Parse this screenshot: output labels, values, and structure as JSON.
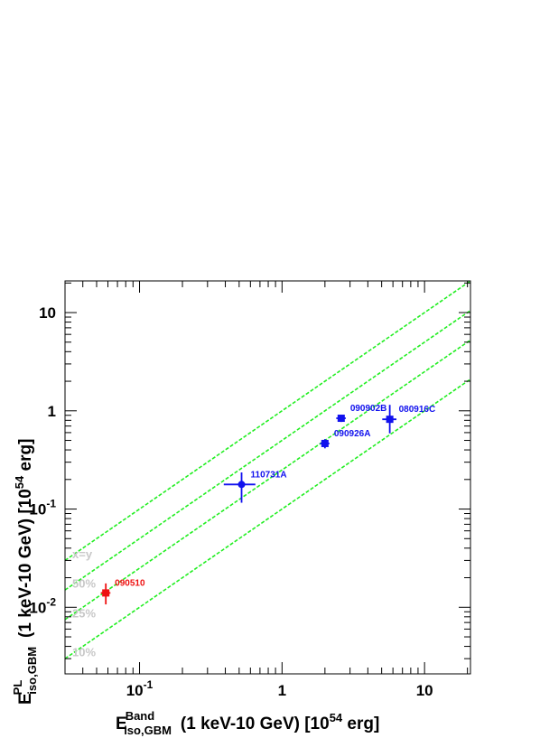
{
  "chart_data": {
    "type": "scatter",
    "title": "",
    "xlabel": {
      "symbol": "E",
      "sup": "Band",
      "sub": "iso,GBM",
      "text": "(1 keV-10 GeV) [10",
      "exp": "54",
      "unit": " erg]"
    },
    "ylabel": {
      "symbol": "E",
      "sup": "PL",
      "sub": "iso,GBM",
      "text": "(1 keV-10 GeV) [10",
      "exp": "54",
      "unit": " erg]"
    },
    "xscale": "log",
    "yscale": "log",
    "xlim": [
      0.03,
      21
    ],
    "ylim": [
      0.0021,
      21
    ],
    "xticks": [
      {
        "v": 0.1,
        "base": "10",
        "exp": "-1"
      },
      {
        "v": 1,
        "text": "1"
      },
      {
        "v": 10,
        "text": "10"
      }
    ],
    "yticks": [
      {
        "v": 0.01,
        "base": "10",
        "exp": "-2"
      },
      {
        "v": 0.1,
        "base": "10",
        "exp": "-1"
      },
      {
        "v": 1,
        "text": "1"
      },
      {
        "v": 10,
        "text": "10"
      }
    ],
    "reference_lines": [
      {
        "label": "x=y",
        "ratio": 1.0
      },
      {
        "label": "50%",
        "ratio": 0.5
      },
      {
        "label": "25%",
        "ratio": 0.25
      },
      {
        "label": "10%",
        "ratio": 0.1
      }
    ],
    "reference_color": "#22ee22",
    "reference_label_color": "#c8c8c8",
    "points": [
      {
        "name": "090510",
        "x": 0.058,
        "y": 0.014,
        "xerr": [
          0.0045,
          0.0045
        ],
        "yerr": [
          0.0033,
          0.0035
        ],
        "color": "#ee1111",
        "marker": "square"
      },
      {
        "name": "110731A",
        "x": 0.52,
        "y": 0.178,
        "xerr": [
          0.13,
          0.13
        ],
        "yerr": [
          0.062,
          0.058
        ],
        "color": "#1111ee",
        "marker": "circle"
      },
      {
        "name": "090926A",
        "x": 2.0,
        "y": 0.465,
        "xerr": [
          0.15,
          0.15
        ],
        "yerr": [
          0.05,
          0.05
        ],
        "color": "#1111ee",
        "marker": "square"
      },
      {
        "name": "090902B",
        "x": 2.6,
        "y": 0.84,
        "xerr": [
          0.2,
          0.2
        ],
        "yerr": [
          0.07,
          0.07
        ],
        "color": "#1111ee",
        "marker": "square"
      },
      {
        "name": "080916C",
        "x": 5.7,
        "y": 0.82,
        "xerr": [
          0.65,
          0.65
        ],
        "yerr": [
          0.23,
          0.33
        ],
        "color": "#1111ee",
        "marker": "square"
      }
    ],
    "grid": false,
    "legend": "none"
  }
}
